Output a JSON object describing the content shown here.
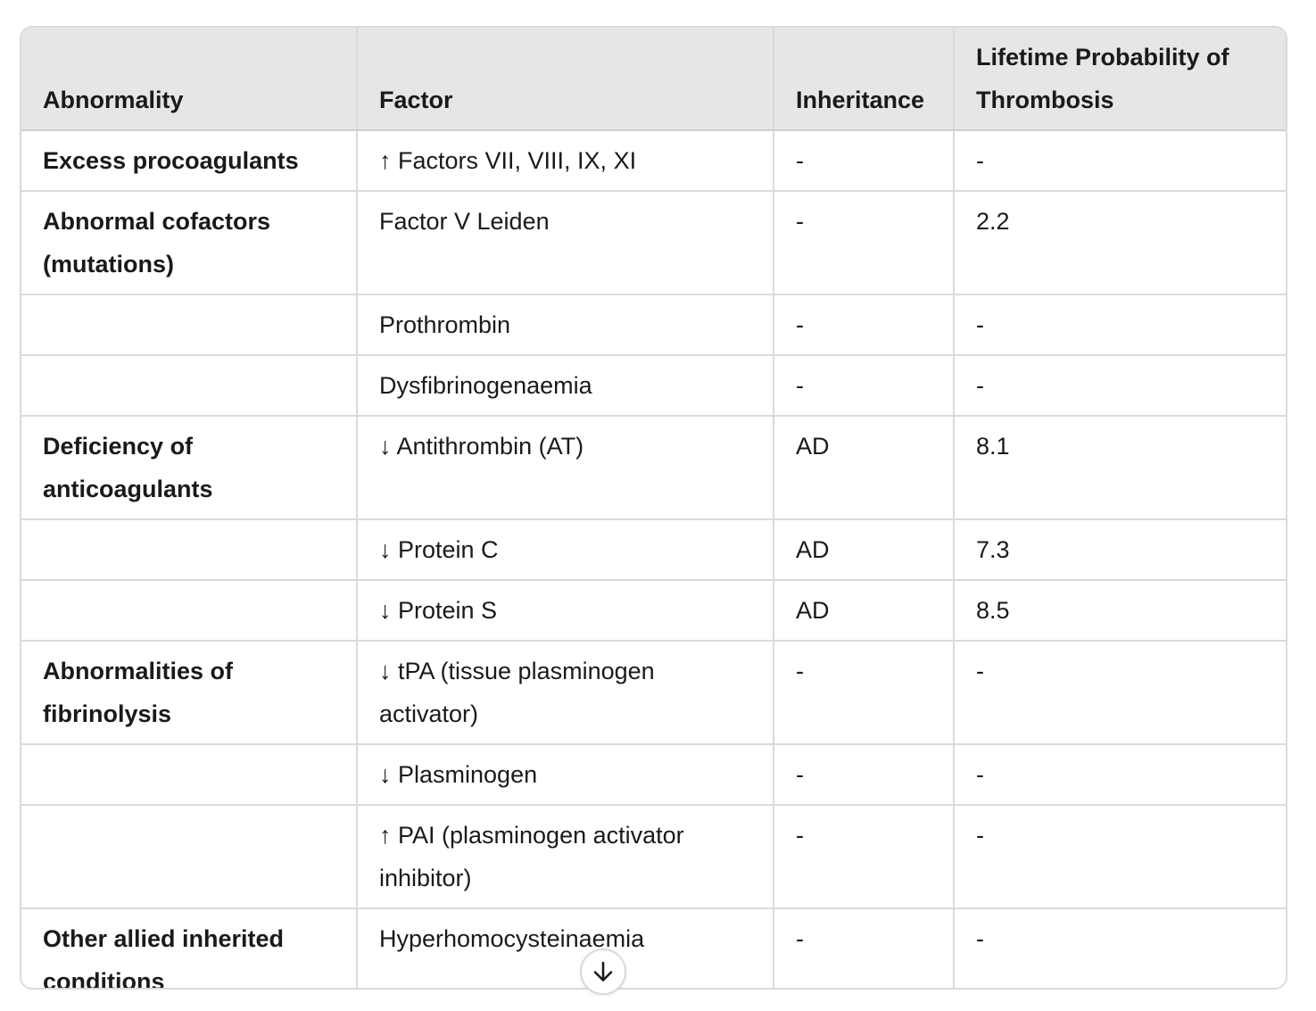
{
  "table": {
    "headers": [
      "Abnormality",
      "Factor",
      "Inheritance",
      "Lifetime Probability of Thrombosis"
    ],
    "rows": [
      {
        "abnormality": "Excess procoagulants",
        "factor": "↑ Factors VII, VIII, IX, XI",
        "inheritance": "-",
        "probability": "-"
      },
      {
        "abnormality": "Abnormal cofactors (mutations)",
        "factor": "Factor V Leiden",
        "inheritance": "-",
        "probability": "2.2"
      },
      {
        "abnormality": "",
        "factor": "Prothrombin",
        "inheritance": "-",
        "probability": "-"
      },
      {
        "abnormality": "",
        "factor": "Dysfibrinogenaemia",
        "inheritance": "-",
        "probability": "-"
      },
      {
        "abnormality": "Deficiency of anticoagulants",
        "factor": "↓ Antithrombin (AT)",
        "inheritance": "AD",
        "probability": "8.1"
      },
      {
        "abnormality": "",
        "factor": "↓ Protein C",
        "inheritance": "AD",
        "probability": "7.3"
      },
      {
        "abnormality": "",
        "factor": "↓ Protein S",
        "inheritance": "AD",
        "probability": "8.5"
      },
      {
        "abnormality": "Abnormalities of fibrinolysis",
        "factor": "↓ tPA (tissue plasminogen activator)",
        "inheritance": "-",
        "probability": "-"
      },
      {
        "abnormality": "",
        "factor": "↓ Plasminogen",
        "inheritance": "-",
        "probability": "-"
      },
      {
        "abnormality": "",
        "factor": "↑ PAI (plasminogen activator inhibitor)",
        "inheritance": "-",
        "probability": "-"
      },
      {
        "abnormality": "Other allied inherited conditions",
        "factor": "Hyperhomocysteinaemia",
        "inheritance": "-",
        "probability": "-"
      }
    ]
  },
  "scroll_button": {
    "icon": "arrow-down-icon"
  }
}
